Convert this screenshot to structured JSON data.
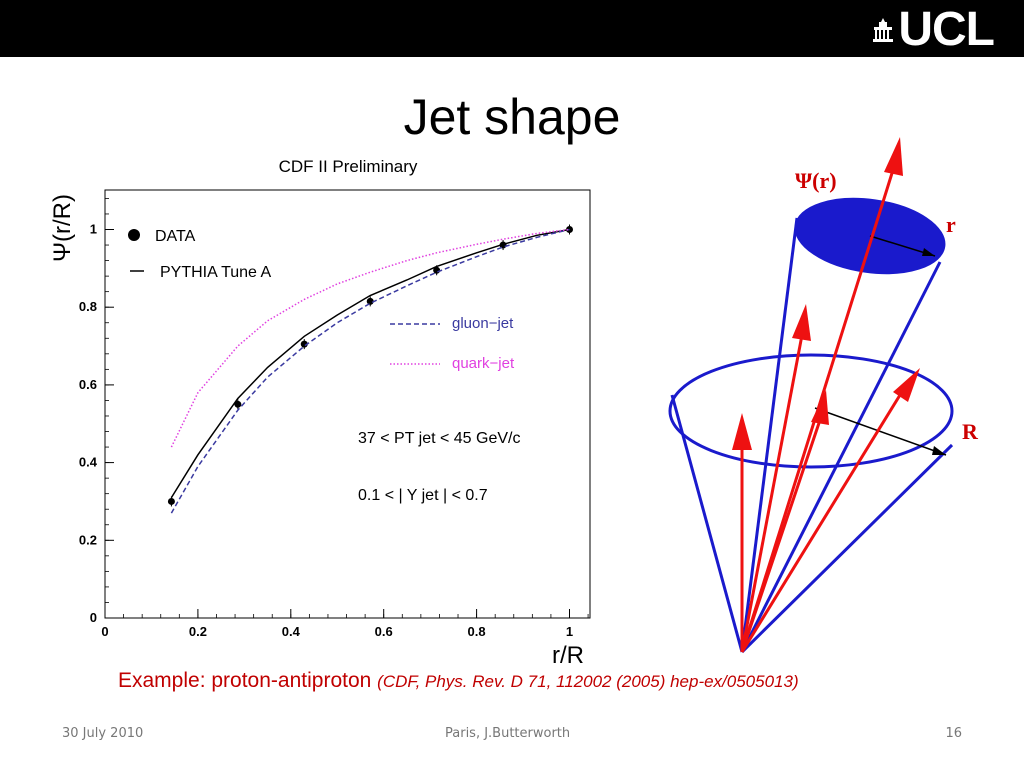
{
  "header": {
    "logo_text": "UCL"
  },
  "slide": {
    "title": "Jet shape"
  },
  "chart_data": {
    "type": "line",
    "title": "CDF II Preliminary",
    "xlabel": "r/R",
    "ylabel": "Ψ(r/R)",
    "xlim": [
      0,
      1.05
    ],
    "ylim": [
      0,
      1.1
    ],
    "x_ticks": [
      "0",
      "0.2",
      "0.4",
      "0.6",
      "0.8",
      "1"
    ],
    "y_ticks": [
      "0",
      "0.2",
      "0.4",
      "0.6",
      "0.8",
      "1"
    ],
    "series": [
      {
        "name": "DATA",
        "kind": "points",
        "color": "#000000",
        "x": [
          0.143,
          0.286,
          0.429,
          0.571,
          0.714,
          0.857,
          1.0
        ],
        "y": [
          0.3,
          0.55,
          0.705,
          0.815,
          0.895,
          0.96,
          1.0
        ]
      },
      {
        "name": "PYTHIA Tune A",
        "kind": "solid",
        "color": "#000000",
        "x": [
          0.143,
          0.2,
          0.286,
          0.35,
          0.429,
          0.5,
          0.571,
          0.65,
          0.714,
          0.8,
          0.857,
          0.93,
          1.0
        ],
        "y": [
          0.31,
          0.42,
          0.565,
          0.645,
          0.725,
          0.78,
          0.83,
          0.87,
          0.905,
          0.94,
          0.962,
          0.985,
          1.0
        ]
      },
      {
        "name": "gluon−jet",
        "kind": "dashed",
        "color": "#3a3aa0",
        "x": [
          0.143,
          0.2,
          0.286,
          0.35,
          0.429,
          0.5,
          0.571,
          0.65,
          0.714,
          0.8,
          0.857,
          0.93,
          1.0
        ],
        "y": [
          0.27,
          0.39,
          0.535,
          0.62,
          0.7,
          0.76,
          0.81,
          0.855,
          0.89,
          0.93,
          0.955,
          0.98,
          1.0
        ]
      },
      {
        "name": "quark−jet",
        "kind": "dotted",
        "color": "#e040e0",
        "x": [
          0.143,
          0.2,
          0.286,
          0.35,
          0.429,
          0.5,
          0.571,
          0.65,
          0.714,
          0.8,
          0.857,
          0.93,
          1.0
        ],
        "y": [
          0.44,
          0.58,
          0.7,
          0.765,
          0.82,
          0.86,
          0.89,
          0.92,
          0.94,
          0.962,
          0.975,
          0.99,
          1.0
        ]
      }
    ],
    "legend": {
      "data_label": "DATA",
      "pythia_label": "PYTHIA Tune A",
      "gluon_label": "gluon−jet",
      "quark_label": "quark−jet"
    },
    "annotations": {
      "pt_range": "37 < PT jet < 45 GeV/c",
      "y_range": "0.1 < | Y jet | < 0.7"
    },
    "grid": false,
    "legend_position": "top-left"
  },
  "diagram": {
    "psi_label": "Ψ(r)",
    "r_label": "r",
    "R_label": "R",
    "cone_color": "#1a1acc",
    "arrow_color": "#ee1111"
  },
  "caption": {
    "main": "Example: proton-antiproton",
    "citation": "(CDF, Phys. Rev. D 71, 112002 (2005) hep-ex/0505013)"
  },
  "footer": {
    "date": "30 July 2010",
    "author": "Paris, J.Butterworth",
    "page": "16"
  }
}
